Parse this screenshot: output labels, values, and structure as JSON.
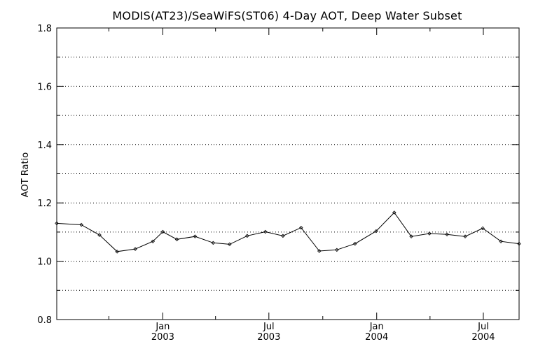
{
  "chart_data": {
    "type": "line",
    "title": "MODIS(AT23)/SeaWiFS(ST06) 4-Day AOT, Deep Water Subset",
    "xlabel": "",
    "ylabel": "AOT Ratio",
    "ylim": [
      0.8,
      1.8
    ],
    "yticks": [
      "0.8",
      "1.0",
      "1.2",
      "1.4",
      "1.6",
      "1.8"
    ],
    "ygrid": [
      0.9,
      1.0,
      1.1,
      1.2,
      1.3,
      1.4,
      1.5,
      1.6,
      1.7
    ],
    "grid": "horizontal dotted",
    "xlim": [
      "2002-07-04",
      "2004-08-31"
    ],
    "xticks": [
      {
        "month": "Jan",
        "year": "2003",
        "date": "2003-01-01"
      },
      {
        "month": "Jul",
        "year": "2003",
        "date": "2003-07-01"
      },
      {
        "month": "Jan",
        "year": "2004",
        "date": "2004-01-01"
      },
      {
        "month": "Jul",
        "year": "2004",
        "date": "2004-07-01"
      }
    ],
    "xminor": [
      "2002-10-01",
      "2003-04-01",
      "2003-10-01",
      "2004-04-01"
    ],
    "series": [
      {
        "x": [
          "2002-07-04",
          "2002-08-15",
          "2002-09-15",
          "2002-10-15",
          "2002-11-15",
          "2002-12-15",
          "2003-01-01",
          "2003-01-25",
          "2003-02-25",
          "2003-03-28",
          "2003-04-25",
          "2003-05-25",
          "2003-06-25",
          "2003-07-25",
          "2003-08-25",
          "2003-09-25",
          "2003-10-25",
          "2003-11-25",
          "2003-12-31",
          "2004-01-31",
          "2004-02-29",
          "2004-03-31",
          "2004-04-30",
          "2004-05-31",
          "2004-06-30",
          "2004-07-31",
          "2004-08-31"
        ],
        "values": [
          1.13,
          1.125,
          1.09,
          1.033,
          1.042,
          1.068,
          1.101,
          1.075,
          1.085,
          1.063,
          1.058,
          1.087,
          1.101,
          1.087,
          1.115,
          1.035,
          1.039,
          1.06,
          1.103,
          1.167,
          1.085,
          1.095,
          1.092,
          1.085,
          1.113,
          1.068,
          1.06
        ]
      }
    ]
  }
}
